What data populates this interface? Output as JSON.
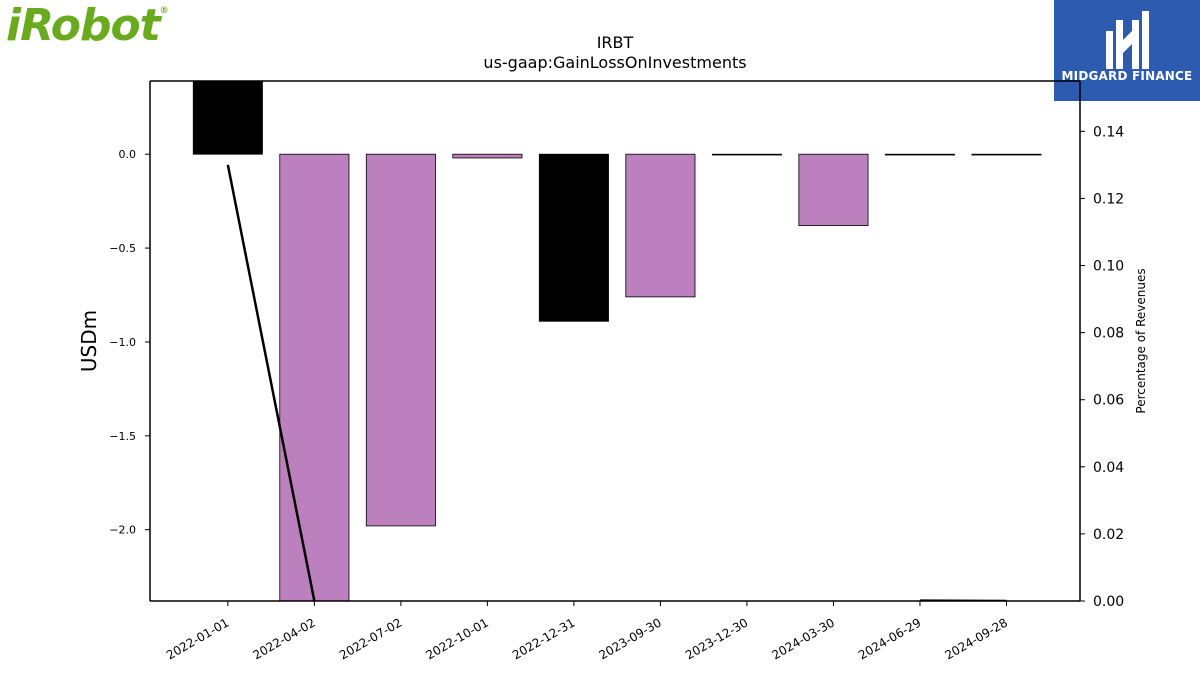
{
  "brand": {
    "name": "iRobot",
    "tm": "®"
  },
  "badge": {
    "name": "MIDGARD FINANCE"
  },
  "chart_data": {
    "type": "bar",
    "title": "IRBT",
    "subtitle": "us-gaap:GainLossOnInvestments",
    "ylabel": "USDm",
    "y2label": "Percentage of Revenues",
    "categories": [
      "2022-01-01",
      "2022-04-02",
      "2022-07-02",
      "2022-10-01",
      "2022-12-31",
      "2023-09-30",
      "2023-12-30",
      "2024-03-30",
      "2024-06-29",
      "2024-09-28"
    ],
    "values": [
      0.39,
      -2.45,
      -1.98,
      -0.02,
      -0.89,
      -0.76,
      0.0,
      -0.38,
      0.0,
      0.0
    ],
    "bar_colors": [
      "#000000",
      "#bb80bd",
      "#bb80bd",
      "#bb80bd",
      "#000000",
      "#bb80bd",
      "#000000",
      "#bb80bd",
      "#000000",
      "#000000"
    ],
    "ylim": [
      -2.38,
      0.39
    ],
    "yticks": [
      0.0,
      -0.5,
      -1.0,
      -1.5,
      -2.0
    ],
    "ytick_labels": [
      "0.0",
      "−0.5",
      "−1.0",
      "−1.5",
      "−2.0"
    ],
    "y2lim": [
      0.0,
      0.155
    ],
    "y2ticks": [
      0.0,
      0.02,
      0.04,
      0.06,
      0.08,
      0.1,
      0.12,
      0.14
    ],
    "y2tick_labels": [
      "0.00",
      "0.02",
      "0.04",
      "0.06",
      "0.08",
      "0.10",
      "0.12",
      "0.14"
    ],
    "pct_series": {
      "name": "Percentage of Revenues",
      "color": "#000000",
      "values": [
        0.13,
        0.0,
        null,
        null,
        null,
        null,
        0.0,
        null,
        0.0001,
        0.0
      ]
    },
    "grid": false,
    "legend": "none"
  }
}
